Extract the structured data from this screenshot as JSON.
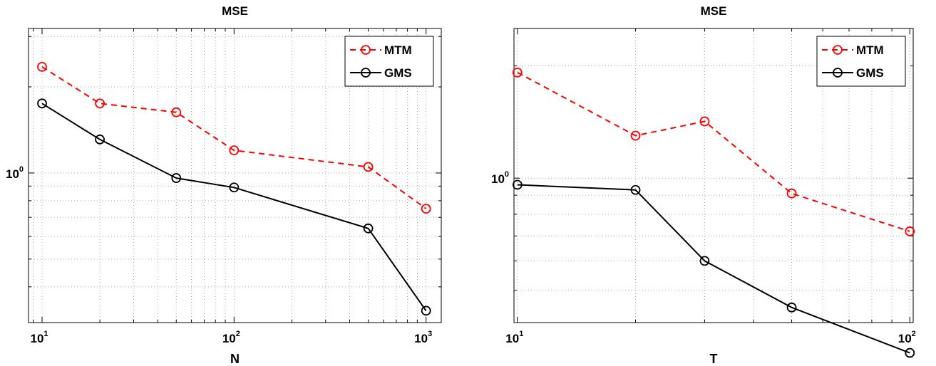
{
  "chart_data": [
    {
      "type": "line",
      "title": "MSE",
      "xlabel": "N",
      "ylabel": "",
      "xscale": "log",
      "yscale": "log",
      "xlim": [
        8.5,
        1200
      ],
      "ylim": [
        0.3,
        3.2
      ],
      "grid": true,
      "legend_position": "top-right",
      "x_tick_labels": [
        {
          "base": "10",
          "exp": "1"
        },
        {
          "base": "10",
          "exp": "2"
        },
        {
          "base": "10",
          "exp": "3"
        }
      ],
      "y_tick_labels": [
        {
          "base": "10",
          "exp": "0"
        }
      ],
      "x": [
        10,
        20,
        50,
        100,
        500,
        1000
      ],
      "series": [
        {
          "name": "MTM",
          "color": "#ff0000",
          "dashed": true,
          "values": [
            2.35,
            1.75,
            1.63,
            1.2,
            1.05,
            0.75
          ]
        },
        {
          "name": "GMS",
          "color": "#000000",
          "dashed": false,
          "values": [
            1.75,
            1.31,
            0.96,
            0.89,
            0.64,
            0.33
          ]
        }
      ]
    },
    {
      "type": "line",
      "title": "MSE",
      "xlabel": "T",
      "ylabel": "",
      "xscale": "log",
      "yscale": "log",
      "xlim": [
        9.8,
        102
      ],
      "ylim": [
        0.41,
        2.52
      ],
      "grid": true,
      "legend_position": "top-right",
      "x_tick_labels": [
        {
          "base": "10",
          "exp": "1"
        },
        {
          "base": "10",
          "exp": "2"
        }
      ],
      "y_tick_labels": [
        {
          "base": "10",
          "exp": "0"
        }
      ],
      "x": [
        10,
        20,
        30,
        50,
        100
      ],
      "series": [
        {
          "name": "MTM",
          "color": "#ff0000",
          "dashed": true,
          "values": [
            1.92,
            1.3,
            1.42,
            0.91,
            0.72
          ]
        },
        {
          "name": "GMS",
          "color": "#000000",
          "dashed": false,
          "values": [
            0.96,
            0.93,
            0.6,
            0.45,
            0.34
          ]
        }
      ]
    }
  ]
}
